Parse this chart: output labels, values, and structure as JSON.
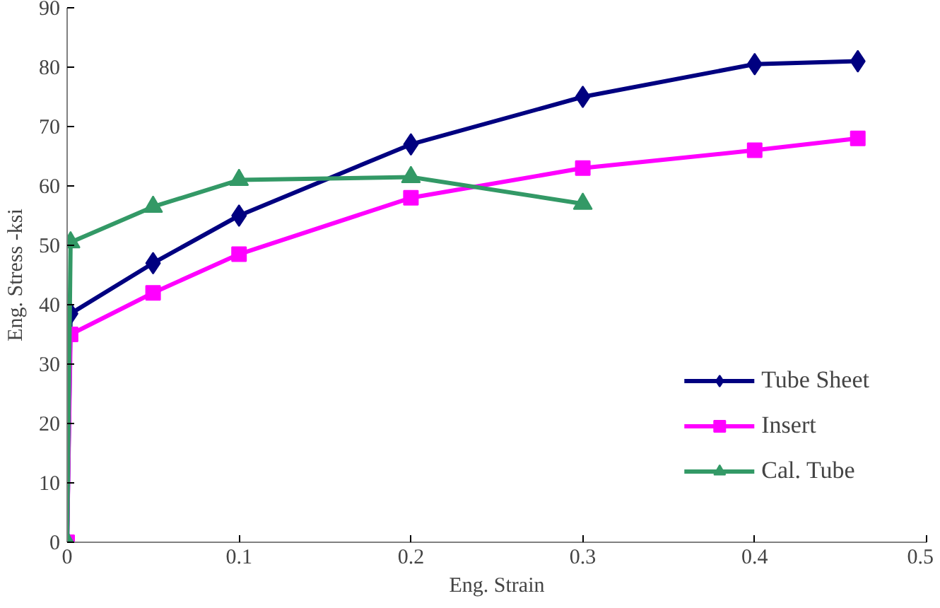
{
  "chart_data": {
    "type": "line",
    "xlabel": "Eng. Strain",
    "ylabel": "Eng. Stress -ksi",
    "xlim": [
      0,
      0.5
    ],
    "xticks": [
      0,
      0.1,
      0.2,
      0.3,
      0.4,
      0.5
    ],
    "ylim": [
      0,
      90
    ],
    "yticks": [
      0,
      10,
      20,
      30,
      40,
      50,
      60,
      70,
      80,
      90
    ],
    "grid": false,
    "legend": "bottom right",
    "series": [
      {
        "name": "Tube Sheet",
        "color": "#000080",
        "marker": "diamond",
        "x": [
          0,
          0.002,
          0.05,
          0.1,
          0.2,
          0.3,
          0.4,
          0.46
        ],
        "values": [
          0,
          38.5,
          47,
          55,
          67,
          75,
          80.5,
          81
        ]
      },
      {
        "name": "Insert",
        "color": "#ff00ff",
        "marker": "square",
        "x": [
          0,
          0.002,
          0.05,
          0.1,
          0.2,
          0.3,
          0.4,
          0.46
        ],
        "values": [
          0,
          35,
          42,
          48.5,
          58,
          63,
          66,
          68
        ]
      },
      {
        "name": "Cal. Tube",
        "color": "#339966",
        "marker": "triangle",
        "x": [
          0,
          0.002,
          0.05,
          0.1,
          0.2,
          0.3
        ],
        "values": [
          0,
          50.5,
          56.5,
          61,
          61.5,
          57
        ]
      }
    ]
  }
}
